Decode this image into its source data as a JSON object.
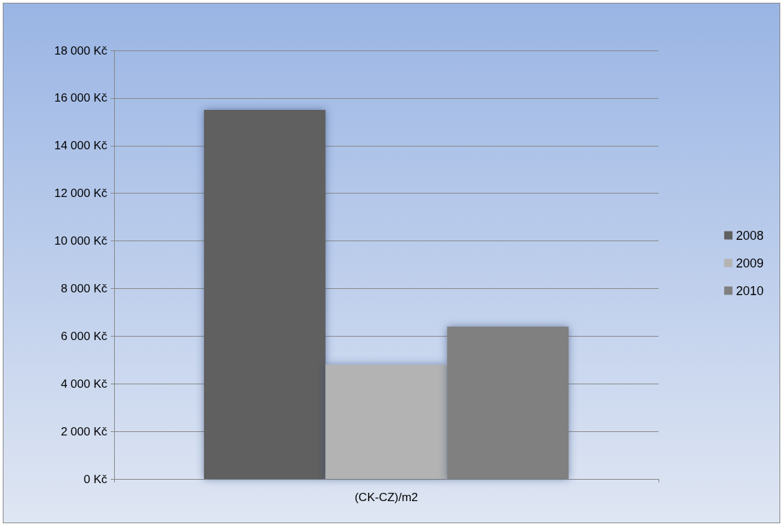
{
  "chart_data": {
    "type": "bar",
    "categories": [
      "(CK-CZ)/m2"
    ],
    "series": [
      {
        "name": "2008",
        "color": "#606060",
        "values": [
          15500
        ]
      },
      {
        "name": "2009",
        "color": "#b3b3b3",
        "values": [
          4800
        ]
      },
      {
        "name": "2010",
        "color": "#808080",
        "values": [
          6400
        ]
      }
    ],
    "ylim": [
      0,
      18000
    ],
    "yticks": [
      {
        "value": 0,
        "label": "0 Kč"
      },
      {
        "value": 2000,
        "label": "2 000 Kč"
      },
      {
        "value": 4000,
        "label": "4 000 Kč"
      },
      {
        "value": 6000,
        "label": "6 000 Kč"
      },
      {
        "value": 8000,
        "label": "8 000 Kč"
      },
      {
        "value": 10000,
        "label": "10 000 Kč"
      },
      {
        "value": 12000,
        "label": "12 000 Kč"
      },
      {
        "value": 14000,
        "label": "14 000 Kč"
      },
      {
        "value": 16000,
        "label": "16 000 Kč"
      },
      {
        "value": 18000,
        "label": "18 000 Kč"
      }
    ],
    "grid": "y",
    "legend": "right"
  }
}
